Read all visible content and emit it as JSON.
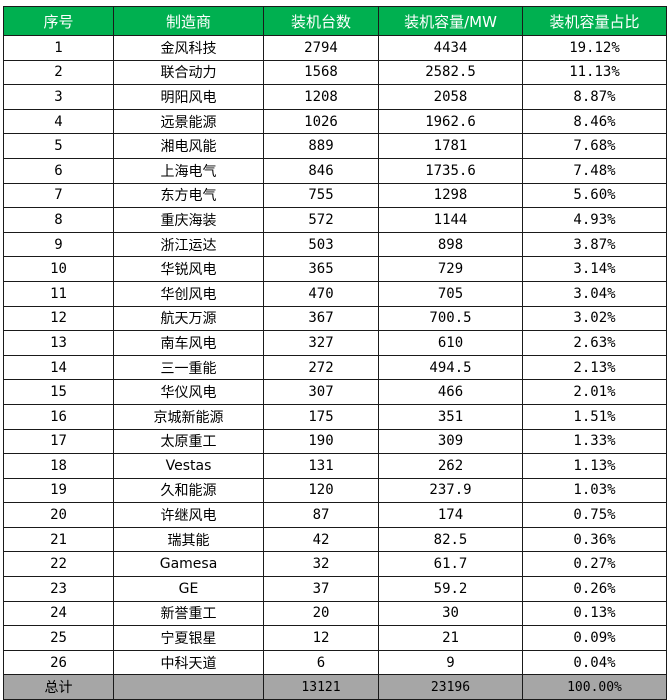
{
  "headers": [
    "序号",
    "制造商",
    "装机台数",
    "装机容量/MW",
    "装机容量占比"
  ],
  "rows": [
    [
      "1",
      "金风科技",
      "2794",
      "4434",
      "19.12%"
    ],
    [
      "2",
      "联合动力",
      "1568",
      "2582.5",
      "11.13%"
    ],
    [
      "3",
      "明阳风电",
      "1208",
      "2058",
      "8.87%"
    ],
    [
      "4",
      "远景能源",
      "1026",
      "1962.6",
      "8.46%"
    ],
    [
      "5",
      "湘电风能",
      "889",
      "1781",
      "7.68%"
    ],
    [
      "6",
      "上海电气",
      "846",
      "1735.6",
      "7.48%"
    ],
    [
      "7",
      "东方电气",
      "755",
      "1298",
      "5.60%"
    ],
    [
      "8",
      "重庆海装",
      "572",
      "1144",
      "4.93%"
    ],
    [
      "9",
      "浙江运达",
      "503",
      "898",
      "3.87%"
    ],
    [
      "10",
      "华锐风电",
      "365",
      "729",
      "3.14%"
    ],
    [
      "11",
      "华创风电",
      "470",
      "705",
      "3.04%"
    ],
    [
      "12",
      "航天万源",
      "367",
      "700.5",
      "3.02%"
    ],
    [
      "13",
      "南车风电",
      "327",
      "610",
      "2.63%"
    ],
    [
      "14",
      "三一重能",
      "272",
      "494.5",
      "2.13%"
    ],
    [
      "15",
      "华仪风电",
      "307",
      "466",
      "2.01%"
    ],
    [
      "16",
      "京城新能源",
      "175",
      "351",
      "1.51%"
    ],
    [
      "17",
      "太原重工",
      "190",
      "309",
      "1.33%"
    ],
    [
      "18",
      "Vestas",
      "131",
      "262",
      "1.13%"
    ],
    [
      "19",
      "久和能源",
      "120",
      "237.9",
      "1.03%"
    ],
    [
      "20",
      "许继风电",
      "87",
      "174",
      "0.75%"
    ],
    [
      "21",
      "瑞其能",
      "42",
      "82.5",
      "0.36%"
    ],
    [
      "22",
      "Gamesa",
      "32",
      "61.7",
      "0.27%"
    ],
    [
      "23",
      "GE",
      "37",
      "59.2",
      "0.26%"
    ],
    [
      "24",
      "新誉重工",
      "20",
      "30",
      "0.13%"
    ],
    [
      "25",
      "宁夏银星",
      "12",
      "21",
      "0.09%"
    ],
    [
      "26",
      "中科天道",
      "6",
      "9",
      "0.04%"
    ]
  ],
  "total": {
    "label": "总计",
    "units": "13121",
    "capacity": "23196",
    "share": "100.00%"
  },
  "colors": {
    "header_bg": "#00b050",
    "header_text": "#ffffff",
    "total_bg": "#a6a6a6",
    "border": "#1a1a1a"
  }
}
